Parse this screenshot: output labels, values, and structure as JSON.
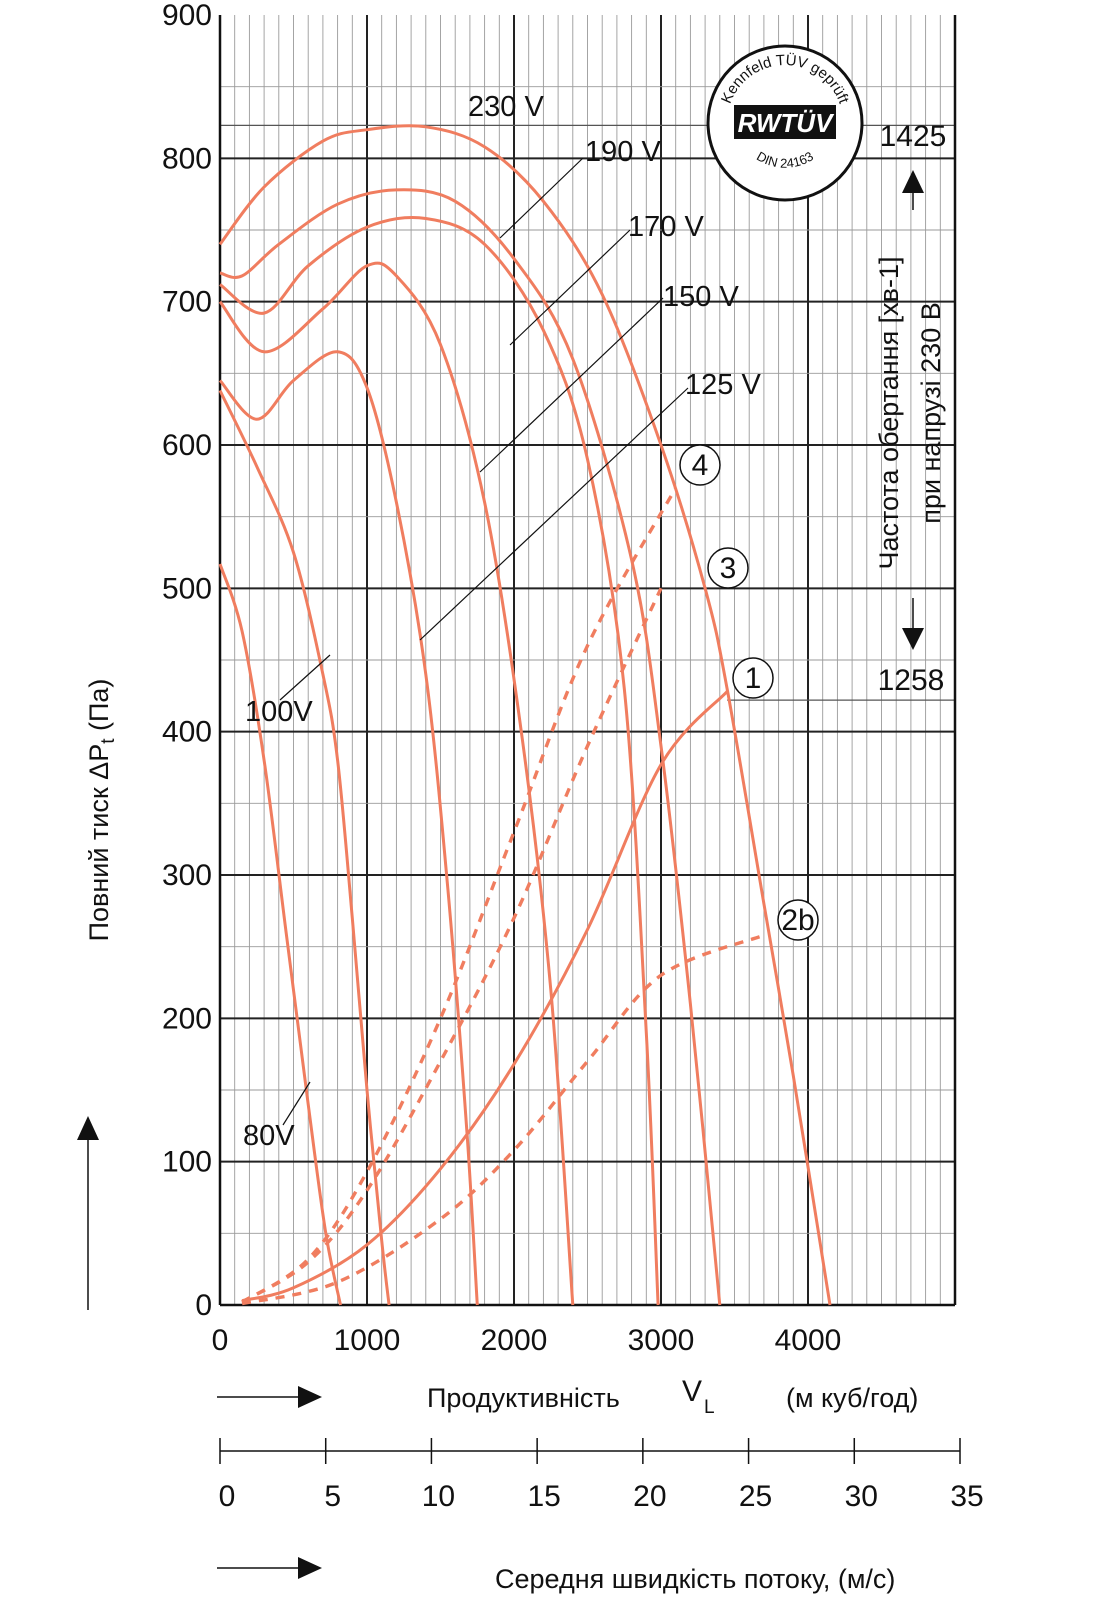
{
  "chart_data": {
    "type": "line",
    "xlabel_prefix": "Продуктивність",
    "xlabel_symbol": "V",
    "xlabel_sub": "L",
    "xlabel_unit": "(м куб/год)",
    "ylabel_main": "Повний тиск ΔP",
    "ylabel_sub": "t",
    "ylabel_unit": "(Па)",
    "xlim": [
      0,
      5000
    ],
    "ylim": [
      0,
      900
    ],
    "x_ticks": [
      0,
      1000,
      2000,
      3000,
      4000
    ],
    "y_ticks": [
      0,
      100,
      200,
      300,
      400,
      500,
      600,
      700,
      800,
      900
    ],
    "velocity_axis": {
      "label": "Середня швидкість потоку, (м/с)",
      "ticks": [
        0,
        5,
        10,
        15,
        20,
        25,
        30,
        35
      ]
    },
    "speed_note": {
      "title": "Частота обертання [хв-1]",
      "subtitle": "при напрузі 230 В",
      "max_label": "1425",
      "max_value": 823,
      "min_label": "1258",
      "min_value": 422
    },
    "certification": {
      "top": "Kennfeld TÜV geprüft",
      "brand": "RWTÜV",
      "bottom": "DIN 24163"
    },
    "series": [
      {
        "name": "230 V",
        "points": [
          [
            0,
            740
          ],
          [
            300,
            780
          ],
          [
            700,
            812
          ],
          [
            1000,
            820
          ],
          [
            1400,
            822
          ],
          [
            1800,
            808
          ],
          [
            2200,
            770
          ],
          [
            2600,
            705
          ],
          [
            3000,
            600
          ],
          [
            3300,
            500
          ],
          [
            3450,
            430
          ],
          [
            3700,
            280
          ],
          [
            3900,
            160
          ],
          [
            4150,
            0
          ]
        ]
      },
      {
        "name": "190 V",
        "points": [
          [
            0,
            720
          ],
          [
            150,
            718
          ],
          [
            400,
            740
          ],
          [
            800,
            768
          ],
          [
            1200,
            778
          ],
          [
            1600,
            770
          ],
          [
            2000,
            730
          ],
          [
            2400,
            660
          ],
          [
            2800,
            520
          ],
          [
            3000,
            390
          ],
          [
            3200,
            210
          ],
          [
            3400,
            0
          ]
        ]
      },
      {
        "name": "170 V",
        "points": [
          [
            0,
            712
          ],
          [
            300,
            692
          ],
          [
            600,
            725
          ],
          [
            1000,
            752
          ],
          [
            1400,
            758
          ],
          [
            1800,
            740
          ],
          [
            2200,
            680
          ],
          [
            2500,
            590
          ],
          [
            2750,
            430
          ],
          [
            2900,
            190
          ],
          [
            2980,
            0
          ]
        ]
      },
      {
        "name": "150 V",
        "points": [
          [
            0,
            700
          ],
          [
            300,
            665
          ],
          [
            700,
            695
          ],
          [
            1000,
            725
          ],
          [
            1200,
            718
          ],
          [
            1500,
            670
          ],
          [
            1800,
            560
          ],
          [
            2050,
            400
          ],
          [
            2250,
            220
          ],
          [
            2400,
            0
          ]
        ]
      },
      {
        "name": "125 V",
        "points": [
          [
            0,
            645
          ],
          [
            250,
            618
          ],
          [
            500,
            645
          ],
          [
            800,
            665
          ],
          [
            1000,
            640
          ],
          [
            1200,
            560
          ],
          [
            1400,
            440
          ],
          [
            1550,
            290
          ],
          [
            1680,
            120
          ],
          [
            1750,
            0
          ]
        ]
      },
      {
        "name": "100V",
        "points": [
          [
            0,
            638
          ],
          [
            250,
            585
          ],
          [
            500,
            525
          ],
          [
            700,
            440
          ],
          [
            800,
            380
          ],
          [
            900,
            270
          ],
          [
            1000,
            150
          ],
          [
            1100,
            45
          ],
          [
            1150,
            0
          ]
        ]
      },
      {
        "name": "80V",
        "points": [
          [
            0,
            517
          ],
          [
            150,
            470
          ],
          [
            300,
            380
          ],
          [
            450,
            260
          ],
          [
            600,
            140
          ],
          [
            720,
            50
          ],
          [
            820,
            0
          ]
        ]
      }
    ],
    "system_curves": [
      {
        "name": "1",
        "points": [
          [
            150,
            3
          ],
          [
            500,
            12
          ],
          [
            1000,
            42
          ],
          [
            1500,
            95
          ],
          [
            2000,
            168
          ],
          [
            2500,
            262
          ],
          [
            3000,
            377
          ],
          [
            3450,
            428
          ]
        ]
      },
      {
        "name": "2b",
        "points": [
          [
            150,
            1
          ],
          [
            800,
            16
          ],
          [
            1500,
            60
          ],
          [
            2000,
            108
          ],
          [
            2500,
            170
          ],
          [
            3000,
            230
          ],
          [
            3700,
            258
          ]
        ]
      },
      {
        "name": "3",
        "points": [
          [
            150,
            2
          ],
          [
            600,
            30
          ],
          [
            1000,
            80
          ],
          [
            1500,
            170
          ],
          [
            2000,
            270
          ],
          [
            2500,
            390
          ],
          [
            3000,
            500
          ]
        ]
      },
      {
        "name": "4",
        "points": [
          [
            150,
            2
          ],
          [
            600,
            32
          ],
          [
            1000,
            93
          ],
          [
            1500,
            200
          ],
          [
            2000,
            330
          ],
          [
            2500,
            460
          ],
          [
            3100,
            570
          ]
        ]
      }
    ]
  }
}
